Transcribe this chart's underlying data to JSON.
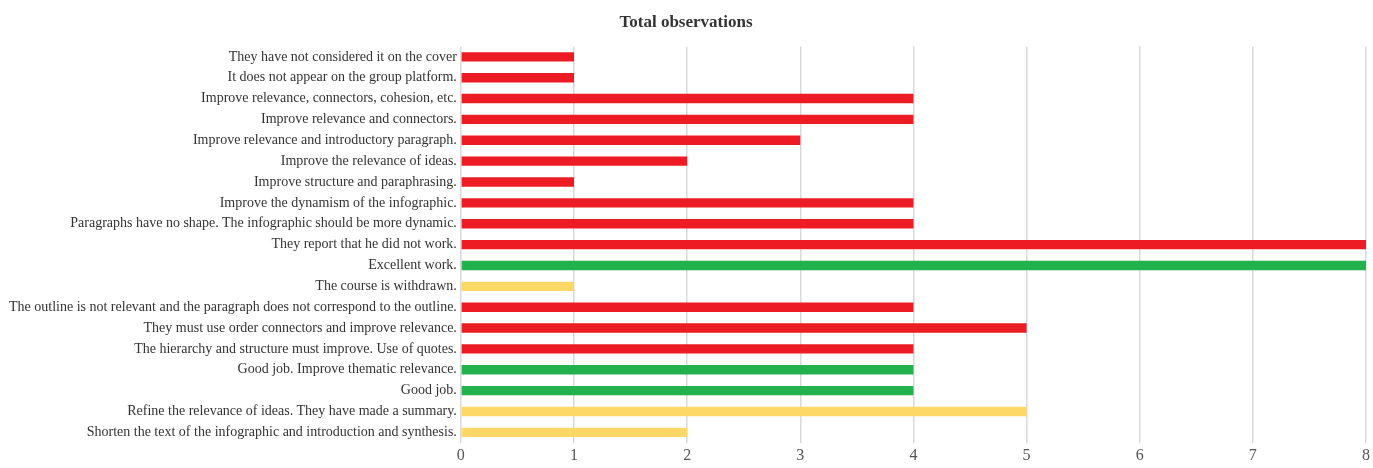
{
  "chart_data": {
    "type": "bar",
    "orientation": "horizontal",
    "title": "Total observations",
    "categories": [
      "They have not considered it on the cover",
      "It does not appear on the group platform.",
      "Improve relevance, connectors, cohesion, etc.",
      "Improve relevance and connectors.",
      "Improve relevance and introductory paragraph.",
      "Improve the relevance of ideas.",
      "Improve structure and paraphrasing.",
      "Improve the dynamism of the infographic.",
      "Paragraphs have no shape. The infographic should be more dynamic.",
      "They report that he did not work.",
      "Excellent work.",
      "The course is withdrawn.",
      "The outline is not relevant and the paragraph does not correspond to the outline.",
      "They must use order connectors and improve relevance.",
      "The hierarchy and structure must improve. Use of quotes.",
      "Good job. Improve thematic relevance.",
      "Good job.",
      "Refine the relevance of ideas. They have made a summary.",
      "Shorten the text of the infographic and introduction and synthesis."
    ],
    "values": [
      1,
      1,
      4,
      4,
      3,
      2,
      1,
      4,
      4,
      8,
      8,
      1,
      4,
      5,
      4,
      4,
      4,
      5,
      2
    ],
    "colors": [
      "#ed1c24",
      "#ed1c24",
      "#ed1c24",
      "#ed1c24",
      "#ed1c24",
      "#ed1c24",
      "#ed1c24",
      "#ed1c24",
      "#ed1c24",
      "#ed1c24",
      "#22b14c",
      "#fdd866",
      "#ed1c24",
      "#ed1c24",
      "#ed1c24",
      "#22b14c",
      "#22b14c",
      "#fdd866",
      "#fdd866"
    ],
    "xlim": [
      0,
      8
    ],
    "xticks": [
      0,
      1,
      2,
      3,
      4,
      5,
      6,
      7,
      8
    ],
    "grid": "x",
    "legend": false
  }
}
